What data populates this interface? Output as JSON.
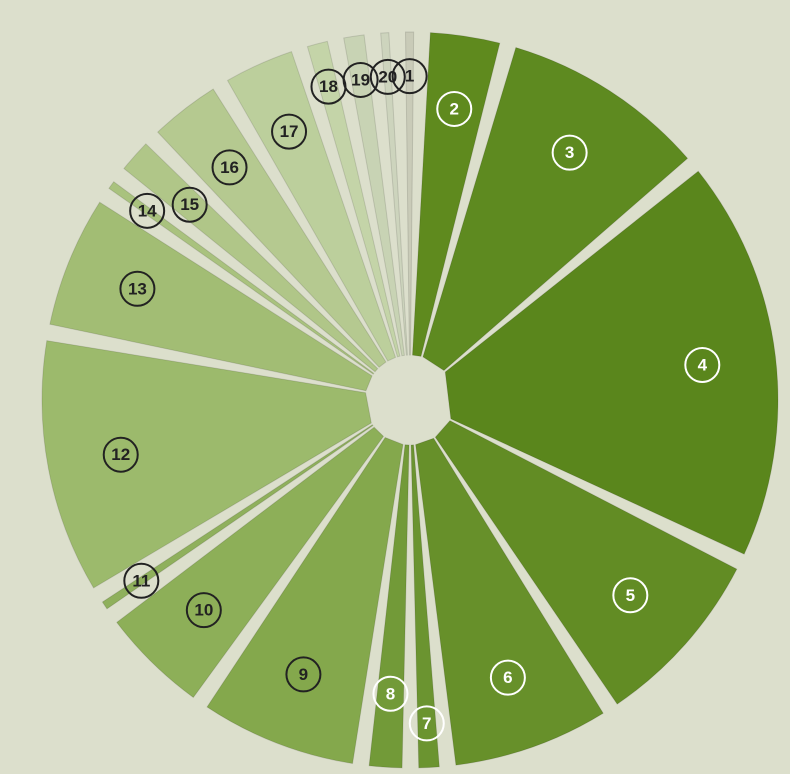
{
  "chart_data": {
    "type": "pie",
    "categories": [
      "1",
      "2",
      "3",
      "4",
      "5",
      "6",
      "7",
      "8",
      "9",
      "10",
      "11",
      "12",
      "13",
      "14",
      "15",
      "16",
      "17",
      "18",
      "19",
      "20"
    ],
    "values": [
      1,
      3.5,
      9,
      17,
      8,
      7,
      1.5,
      2,
      7,
      5,
      1,
      11,
      6,
      1,
      2,
      3.5,
      3.5,
      1.5,
      1.5,
      1
    ],
    "colors": [
      "#c9cbb8",
      "#5f8a1e",
      "#5e8a20",
      "#5a861c",
      "#628c24",
      "#67902a",
      "#6b9430",
      "#729a38",
      "#84a84c",
      "#8daf58",
      "#8fb05c",
      "#9cba6c",
      "#a2bd74",
      "#a9c27e",
      "#b0c688",
      "#b5c990",
      "#bccf9c",
      "#c4d4a8",
      "#c8d3b4",
      "#cdd4bd"
    ]
  }
}
